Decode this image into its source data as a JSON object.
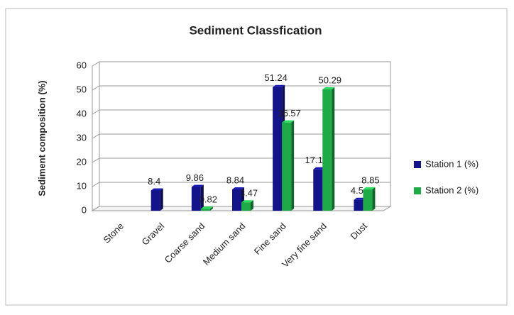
{
  "chart_data": {
    "type": "bar",
    "title": "Sediment Classfication",
    "y_label": "Sediment composition (%)",
    "categories": [
      "Stone",
      "Gravel",
      "Coarse sand",
      "Medium sand",
      "Fine sand",
      "Very fine sand",
      "Dust"
    ],
    "series": [
      {
        "name": "Station 1 (%)",
        "color": "#14148a",
        "values": [
          null,
          8.4,
          9.86,
          8.84,
          51.24,
          17.16,
          4.5
        ]
      },
      {
        "name": "Station 2 (%)",
        "color": "#1faa48",
        "values": [
          null,
          null,
          0.82,
          3.47,
          36.57,
          50.29,
          8.85
        ]
      }
    ],
    "ylim": [
      0,
      60
    ],
    "yticks": [
      0,
      10,
      20,
      30,
      40,
      50,
      60
    ],
    "grid": true,
    "legend": "right"
  }
}
